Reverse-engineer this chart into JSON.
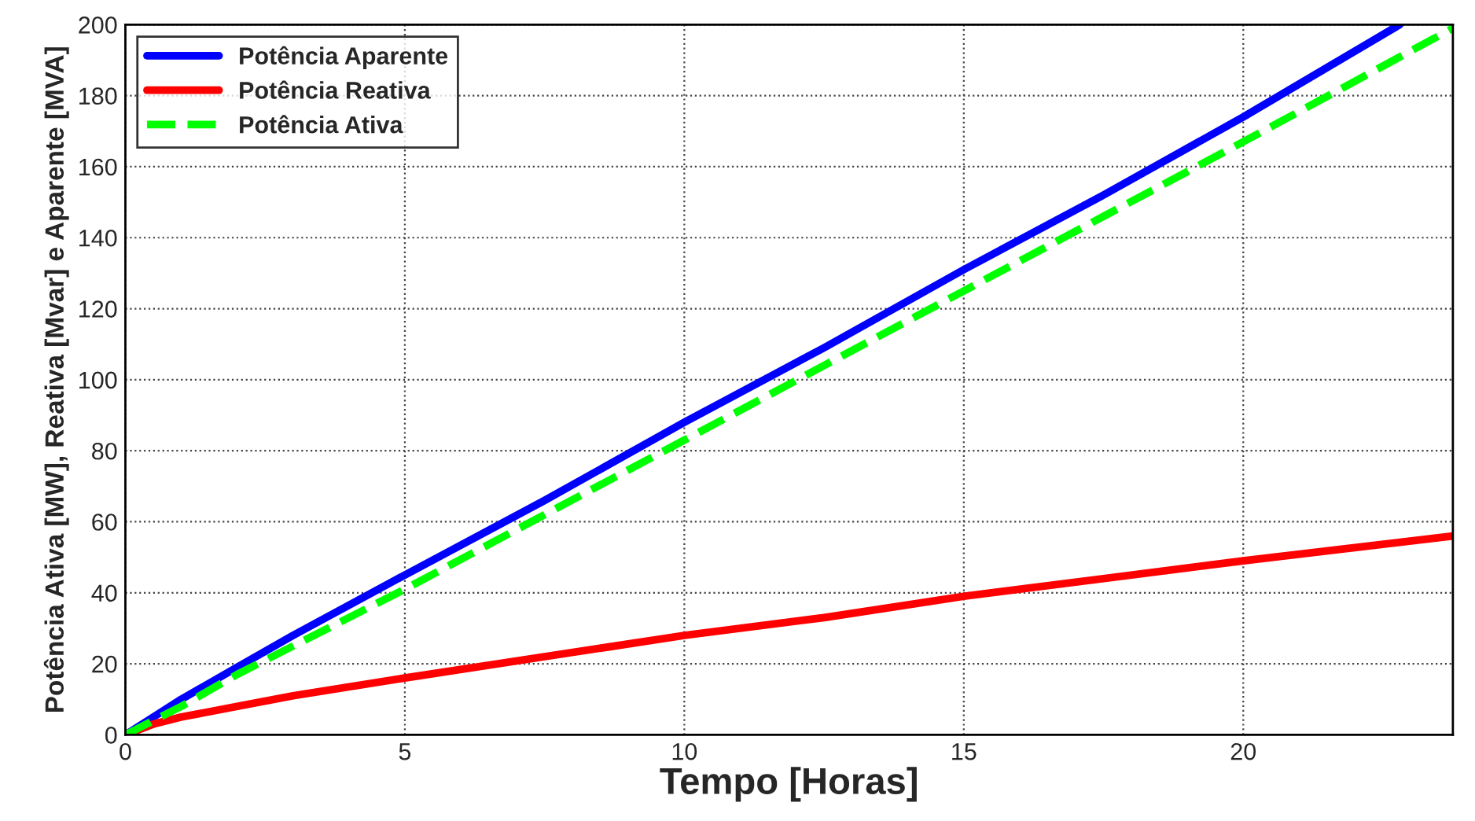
{
  "chart_data": {
    "type": "line",
    "xlabel": "Tempo [Horas]",
    "ylabel": "Potência Ativa [MW], Reativa [Mvar] e Aparente [MVA]",
    "series": [
      {
        "name": "Potência Aparente",
        "color": "#0000ff",
        "line_style": "solid",
        "x": [
          0,
          0.5,
          1,
          2,
          3,
          5,
          7.5,
          10,
          12.5,
          15,
          17.5,
          20,
          22.8
        ],
        "values": [
          0,
          5,
          10,
          19,
          28,
          45,
          66,
          88,
          109,
          131,
          152,
          174,
          200
        ]
      },
      {
        "name": "Potência Reativa",
        "color": "#ff0000",
        "line_style": "solid",
        "x": [
          0,
          0.5,
          1,
          2,
          3,
          5,
          7.5,
          10,
          12.5,
          15,
          17.5,
          20,
          23.75
        ],
        "values": [
          0,
          3,
          5,
          8,
          11,
          16,
          22,
          28,
          33,
          39,
          44,
          49,
          56
        ]
      },
      {
        "name": "Potência Ativa",
        "color": "#00ff00",
        "line_style": "dashed",
        "x": [
          0,
          0.5,
          1,
          2,
          3,
          5,
          7.5,
          10,
          12.5,
          15,
          17.5,
          20,
          23.75
        ],
        "values": [
          0,
          4,
          8,
          17,
          25,
          41,
          62,
          83,
          104,
          125,
          146,
          167,
          199
        ]
      }
    ],
    "xlim": [
      0,
      23.75
    ],
    "xticks": [
      0,
      5,
      10,
      15,
      20
    ],
    "ylim": [
      0,
      200
    ],
    "yticks": [
      0,
      20,
      40,
      60,
      80,
      100,
      120,
      140,
      160,
      180,
      200
    ],
    "grid": true,
    "legend": "top left",
    "marker": "none"
  }
}
